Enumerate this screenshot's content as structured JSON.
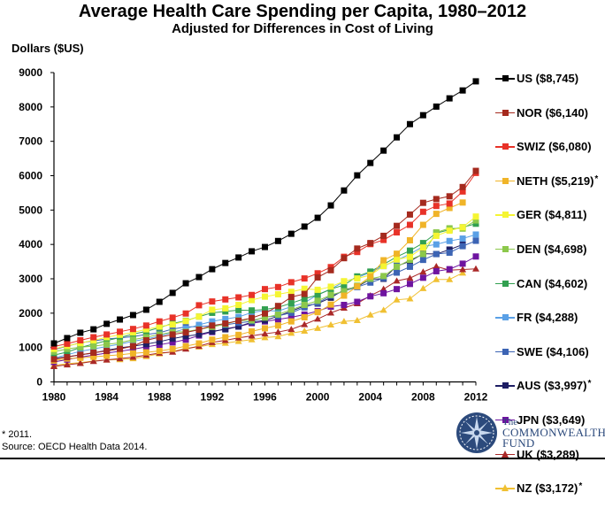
{
  "chart_data": {
    "type": "line",
    "title": "Average Health Care Spending per Capita, 1980–2012",
    "subtitle": "Adjusted for Differences in Cost of Living",
    "xlabel": "",
    "ylabel": "Dollars ($US)",
    "ylim": [
      0,
      9000
    ],
    "xlim": [
      1980,
      2012
    ],
    "grid": false,
    "legend_position": "right",
    "y_ticks": [
      "0",
      "1000",
      "2000",
      "3000",
      "4000",
      "5000",
      "6000",
      "7000",
      "8000",
      "9000"
    ],
    "x_tick_labels": [
      "1980",
      "1984",
      "1988",
      "1992",
      "1996",
      "2000",
      "2004",
      "2008",
      "2012"
    ],
    "x": [
      1980,
      1981,
      1982,
      1983,
      1984,
      1985,
      1986,
      1987,
      1988,
      1989,
      1990,
      1991,
      1992,
      1993,
      1994,
      1995,
      1996,
      1997,
      1998,
      1999,
      2000,
      2001,
      2002,
      2003,
      2004,
      2005,
      2006,
      2007,
      2008,
      2009,
      2010,
      2011,
      2012
    ],
    "series": [
      {
        "name": "US",
        "legend": "US ($8,745)",
        "color": "#000000",
        "marker": "square",
        "values": [
          1120,
          1275,
          1430,
          1530,
          1690,
          1815,
          1945,
          2100,
          2330,
          2590,
          2870,
          3050,
          3280,
          3460,
          3620,
          3800,
          3925,
          4100,
          4310,
          4520,
          4775,
          5135,
          5570,
          6010,
          6370,
          6730,
          7115,
          7500,
          7760,
          8010,
          8250,
          8480,
          8745
        ]
      },
      {
        "name": "NOR",
        "legend": "NOR ($6,140)",
        "color": "#a52a1e",
        "marker": "square",
        "values": [
          660,
          720,
          790,
          850,
          900,
          960,
          1040,
          1210,
          1300,
          1380,
          1440,
          1520,
          1640,
          1700,
          1780,
          1860,
          1990,
          2210,
          2470,
          2560,
          3040,
          3250,
          3600,
          3880,
          4040,
          4250,
          4540,
          4870,
          5210,
          5320,
          5400,
          5670,
          6140
        ]
      },
      {
        "name": "SWIZ",
        "legend": "SWIZ ($6,080)",
        "color": "#e83228",
        "marker": "square",
        "values": [
          1030,
          1110,
          1210,
          1300,
          1380,
          1460,
          1540,
          1640,
          1760,
          1870,
          1990,
          2230,
          2340,
          2400,
          2460,
          2530,
          2700,
          2760,
          2900,
          3010,
          3160,
          3340,
          3640,
          3780,
          4010,
          4130,
          4350,
          4570,
          4950,
          5120,
          5190,
          5540,
          6080
        ]
      },
      {
        "name": "NETH",
        "legend": "NETH ($5,219)*",
        "color": "#f0b428",
        "marker": "square",
        "star": true,
        "values": [
          620,
          680,
          700,
          730,
          760,
          790,
          830,
          860,
          900,
          960,
          1040,
          1120,
          1230,
          1300,
          1370,
          1470,
          1560,
          1640,
          1760,
          1880,
          2030,
          2250,
          2510,
          2780,
          3070,
          3540,
          3730,
          4120,
          4570,
          4890,
          5060,
          5219,
          null
        ]
      },
      {
        "name": "GER",
        "legend": "GER ($4,811)",
        "color": "#f5f532",
        "marker": "square",
        "values": [
          960,
          1050,
          1130,
          1210,
          1300,
          1370,
          1440,
          1530,
          1610,
          1670,
          1770,
          1900,
          2100,
          2140,
          2240,
          2380,
          2480,
          2550,
          2620,
          2710,
          2680,
          2770,
          2930,
          3010,
          3110,
          3370,
          3560,
          3640,
          3910,
          4250,
          4400,
          4500,
          4811
        ]
      },
      {
        "name": "DEN",
        "legend": "DEN ($4,698)",
        "color": "#8cc84b",
        "marker": "square",
        "values": [
          880,
          960,
          1010,
          1040,
          1090,
          1140,
          1230,
          1300,
          1380,
          1450,
          1460,
          1530,
          1600,
          1680,
          1790,
          1790,
          1870,
          1960,
          2100,
          2240,
          2360,
          2530,
          2640,
          2800,
          3000,
          3080,
          3350,
          3550,
          3720,
          4350,
          4470,
          4460,
          4698
        ]
      },
      {
        "name": "CAN",
        "legend": "CAN ($4,602)",
        "color": "#32a050",
        "marker": "square",
        "values": [
          780,
          870,
          1000,
          1100,
          1200,
          1290,
          1390,
          1470,
          1580,
          1700,
          1780,
          1900,
          2010,
          2050,
          2090,
          2080,
          2110,
          2170,
          2290,
          2420,
          2530,
          2700,
          2820,
          3070,
          3210,
          3420,
          3640,
          3820,
          4040,
          4330,
          4430,
          4500,
          4602
        ]
      },
      {
        "name": "FR",
        "legend": "FR ($4,288)",
        "color": "#5aa0e6",
        "marker": "square",
        "values": [
          700,
          790,
          890,
          960,
          1030,
          1100,
          1180,
          1250,
          1330,
          1440,
          1550,
          1660,
          1760,
          1830,
          1890,
          2020,
          2080,
          2060,
          2190,
          2300,
          2540,
          2700,
          2920,
          3030,
          3190,
          3370,
          3540,
          3720,
          3940,
          4000,
          4100,
          4170,
          4288
        ]
      },
      {
        "name": "SWE",
        "legend": "SWE ($4,106)",
        "color": "#3c64b4",
        "marker": "square",
        "values": [
          940,
          1040,
          1140,
          1190,
          1250,
          1280,
          1320,
          1380,
          1430,
          1540,
          1600,
          1610,
          1640,
          1660,
          1720,
          1760,
          1890,
          1920,
          2010,
          2170,
          2300,
          2510,
          2640,
          2760,
          2890,
          3020,
          3180,
          3350,
          3550,
          3720,
          3760,
          3950,
          4106
        ]
      },
      {
        "name": "AUS",
        "legend": "AUS ($3,997)*",
        "color": "#1e1e64",
        "marker": "square",
        "star": true,
        "values": [
          680,
          730,
          790,
          840,
          920,
          990,
          1040,
          1100,
          1170,
          1260,
          1330,
          1380,
          1470,
          1530,
          1610,
          1740,
          1790,
          1910,
          2060,
          2210,
          2280,
          2450,
          2680,
          2770,
          2990,
          3000,
          3370,
          3510,
          3730,
          3720,
          3850,
          3997,
          null
        ]
      },
      {
        "name": "JPN",
        "legend": "JPN ($3,649)",
        "color": "#6e14a0",
        "marker": "square",
        "values": [
          580,
          650,
          720,
          780,
          840,
          890,
          950,
          1020,
          1080,
          1150,
          1230,
          1350,
          1450,
          1550,
          1610,
          1710,
          1760,
          1820,
          1880,
          1960,
          2060,
          2190,
          2240,
          2330,
          2490,
          2580,
          2700,
          2850,
          3030,
          3220,
          3280,
          3440,
          3649
        ]
      },
      {
        "name": "UK",
        "legend": "UK ($3,289)",
        "color": "#aa2828",
        "marker": "triangle",
        "values": [
          450,
          500,
          540,
          600,
          640,
          680,
          720,
          780,
          840,
          870,
          960,
          1040,
          1150,
          1210,
          1280,
          1340,
          1400,
          1450,
          1530,
          1670,
          1830,
          2010,
          2150,
          2280,
          2510,
          2700,
          2940,
          3020,
          3200,
          3360,
          3250,
          3270,
          3289
        ]
      },
      {
        "name": "NZ",
        "legend": "NZ ($3,172)*",
        "color": "#f0c032",
        "marker": "triangle",
        "star": true,
        "values": [
          480,
          530,
          560,
          610,
          640,
          650,
          680,
          740,
          820,
          880,
          980,
          1020,
          1090,
          1130,
          1180,
          1230,
          1290,
          1320,
          1420,
          1480,
          1560,
          1660,
          1760,
          1790,
          1950,
          2090,
          2390,
          2420,
          2720,
          2980,
          2980,
          3172,
          null
        ]
      }
    ]
  },
  "header": {
    "title": "Average Health Care Spending per Capita, 1980–2012",
    "subtitle": "Adjusted for Differences in Cost of Living",
    "y_axis_title": "Dollars ($US)"
  },
  "footer": {
    "footnote": "* 2011.",
    "source": "Source: OECD Health Data 2014."
  },
  "logo": {
    "line1": "The",
    "line2": "COMMONWEALTH",
    "line3": "FUND",
    "color": "#2c4a7c"
  }
}
